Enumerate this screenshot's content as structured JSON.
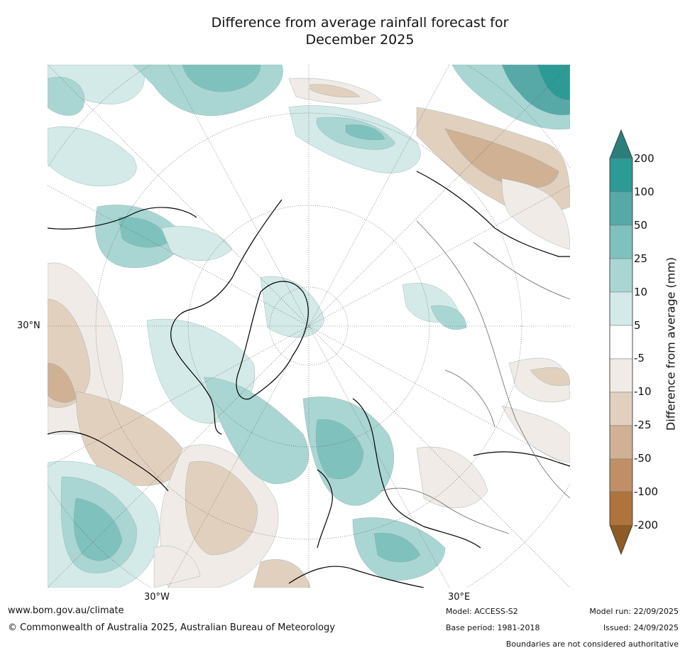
{
  "title": {
    "line1": "Difference from average rainfall forecast for",
    "line2": "December 2025"
  },
  "map": {
    "projection": "north-polar-stereographic",
    "region": "Northern Hemisphere",
    "lat_label": "30°N",
    "lon_labels": {
      "west": "30°W",
      "east": "30°E"
    }
  },
  "colorbar": {
    "title": "Difference from average (mm)",
    "tick_labels": [
      "200",
      "100",
      "50",
      "25",
      "10",
      "5",
      "-5",
      "-10",
      "-25",
      "-50",
      "-100",
      "-200"
    ],
    "colors": {
      "over_200": "#2a7f7b",
      "100_200": "#2e9a96",
      "50_100": "#56a9a7",
      "25_50": "#7fc1bd",
      "10_25": "#a9d6d3",
      "5_10": "#d3eae8",
      "neg5_5": "#ffffff",
      "neg10_neg5": "#f0ebe6",
      "neg25_neg10": "#e2d0bf",
      "neg50_neg25": "#d0b193",
      "neg100_neg50": "#bf9067",
      "neg200_neg100": "#ad743c",
      "under_neg200": "#8e5a25"
    }
  },
  "footer": {
    "website": "www.bom.gov.au/climate",
    "copyright": "© Commonwealth of Australia 2025, Australian Bureau of Meteorology",
    "model": "Model: ACCESS-S2",
    "base_period": "Base period: 1981-2018",
    "model_run": "Model run: 22/09/2025",
    "issued": "Issued: 24/09/2025",
    "disclaimer": "Boundaries are not considered authoritative"
  }
}
